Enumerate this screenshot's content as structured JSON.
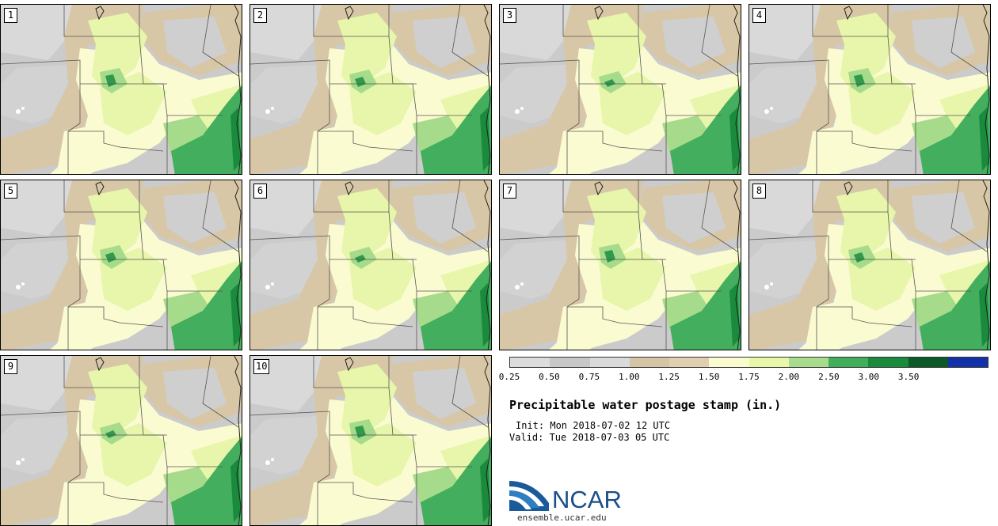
{
  "stamps": [
    {
      "label": "1"
    },
    {
      "label": "2"
    },
    {
      "label": "3"
    },
    {
      "label": "4"
    },
    {
      "label": "5"
    },
    {
      "label": "6"
    },
    {
      "label": "7"
    },
    {
      "label": "8"
    },
    {
      "label": "9"
    },
    {
      "label": "10"
    }
  ],
  "colorbar": {
    "colors": [
      "#dcdcdc",
      "#c8c8c8",
      "#dadada",
      "#d6c5a4",
      "#e0cfb0",
      "#fbfbd0",
      "#e8f7a8",
      "#a8dc8c",
      "#41ae5c",
      "#1a8a3c",
      "#0c5a28",
      "#1432a8"
    ],
    "ticks": [
      "0.25",
      "0.50",
      "0.75",
      "1.00",
      "1.25",
      "1.50",
      "1.75",
      "2.00",
      "2.50",
      "3.00",
      "3.50"
    ]
  },
  "title": "Precipitable water postage stamp (in.)",
  "init": "Init: Mon 2018-07-02 12 UTC",
  "valid": "Valid: Tue 2018-07-03 05 UTC",
  "logo": {
    "text": "NCAR",
    "url": "ensemble.ucar.edu"
  }
}
